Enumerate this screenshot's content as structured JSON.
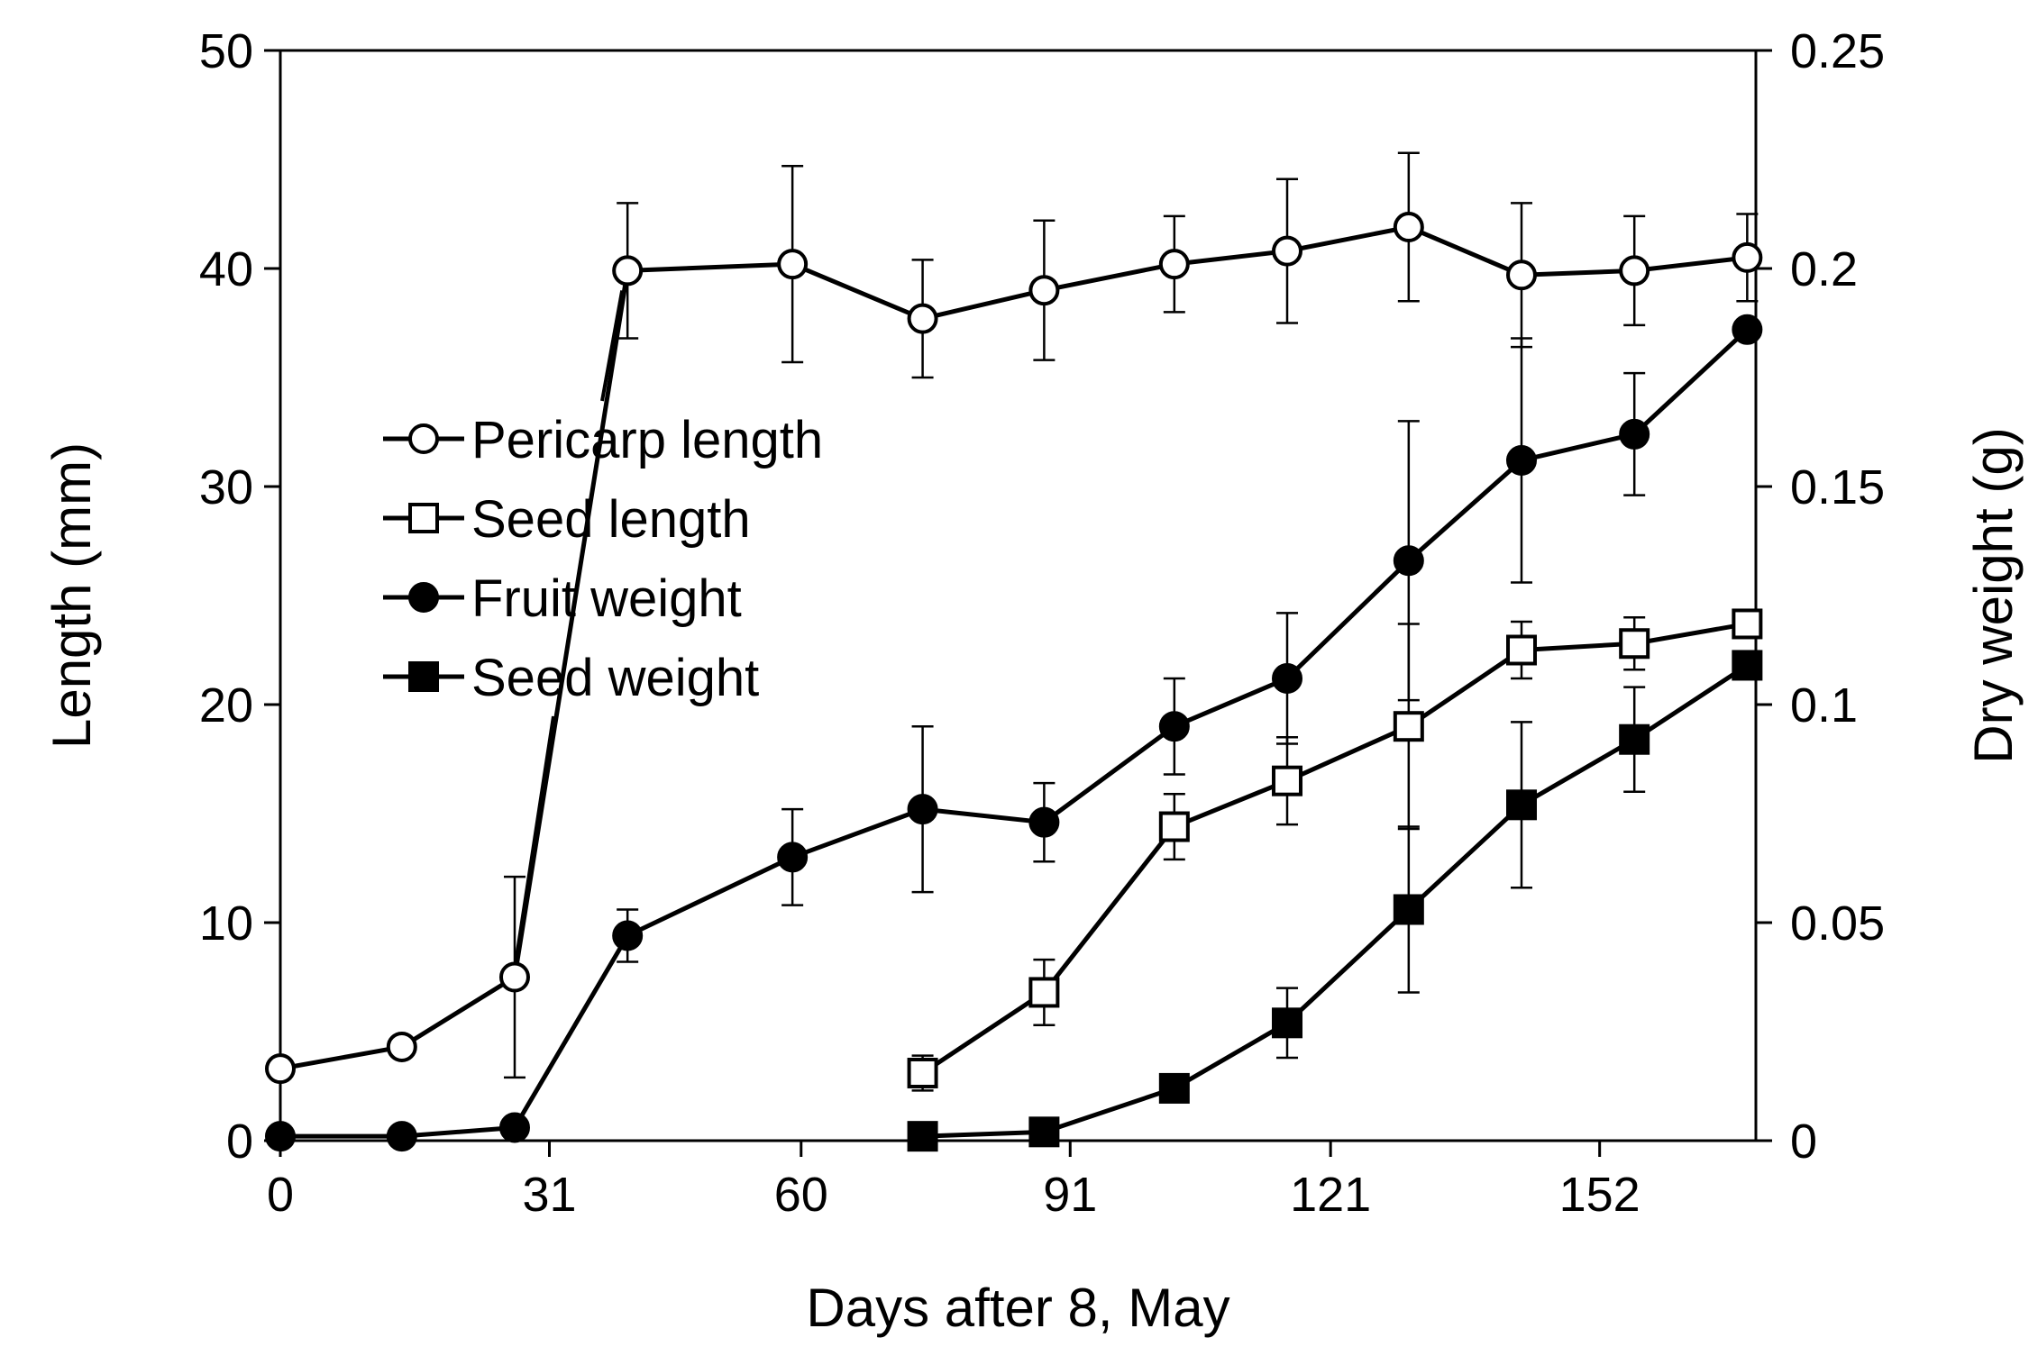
{
  "chart_data": {
    "type": "line",
    "title": "",
    "xlabel": "Days after 8, May",
    "ylabel": "Length (mm)",
    "y2label": "Dry weight (g)",
    "xlim": [
      0,
      170
    ],
    "ylim": [
      0,
      50
    ],
    "y2lim": [
      0,
      0.25
    ],
    "xticks": [
      0,
      31,
      60,
      91,
      121,
      152
    ],
    "yticks": [
      0,
      10,
      20,
      30,
      40,
      50
    ],
    "y2ticks": [
      0,
      0.05,
      0.1,
      0.15,
      0.2,
      0.25
    ],
    "xtick_labels": [
      "0",
      "31",
      "60",
      "91",
      "121",
      "152"
    ],
    "ytick_labels": [
      "0",
      "10",
      "20",
      "30",
      "40",
      "50"
    ],
    "y2tick_labels": [
      "0",
      "0.05",
      "0.1",
      "0.15",
      "0.2",
      "0.25"
    ],
    "legend_position": "upper-left (inside plot)",
    "series": [
      {
        "name": "Pericarp length",
        "axis": "left",
        "marker": "circle-open",
        "x": [
          0,
          14,
          27,
          40,
          59,
          74,
          88,
          103,
          116,
          130,
          143,
          156,
          169
        ],
        "y": [
          3.3,
          4.3,
          7.5,
          39.9,
          40.2,
          37.7,
          39.0,
          40.2,
          40.8,
          41.9,
          39.7,
          39.9,
          40.5
        ],
        "err": [
          0,
          0,
          4.6,
          3.1,
          4.5,
          2.7,
          3.2,
          2.2,
          3.3,
          3.4,
          3.3,
          2.5,
          2.0
        ]
      },
      {
        "name": "Seed length",
        "axis": "left",
        "marker": "square-open",
        "x": [
          74,
          88,
          103,
          116,
          130,
          143,
          156,
          169
        ],
        "y": [
          3.1,
          6.8,
          14.4,
          16.5,
          19.0,
          22.5,
          22.8,
          23.7
        ],
        "err": [
          0.8,
          1.5,
          1.5,
          2.0,
          4.7,
          1.3,
          1.2,
          0
        ]
      },
      {
        "name": "Fruit weight",
        "axis": "right",
        "marker": "circle-filled",
        "x": [
          0,
          14,
          27,
          40,
          59,
          74,
          88,
          103,
          116,
          130,
          143,
          156,
          169
        ],
        "y": [
          0.001,
          0.001,
          0.003,
          0.047,
          0.065,
          0.076,
          0.073,
          0.095,
          0.106,
          0.133,
          0.156,
          0.162,
          0.186
        ],
        "err": [
          0,
          0,
          0,
          0.006,
          0.011,
          0.019,
          0.009,
          0.011,
          0.015,
          0.032,
          0.028,
          0.014,
          0
        ]
      },
      {
        "name": "Seed weight",
        "axis": "right",
        "marker": "square-filled",
        "x": [
          74,
          88,
          103,
          116,
          130,
          143,
          156,
          169
        ],
        "y": [
          0.001,
          0.002,
          0.012,
          0.027,
          0.053,
          0.077,
          0.092,
          0.109
        ],
        "err": [
          0,
          0,
          0,
          0.008,
          0.019,
          0.019,
          0.012,
          0
        ]
      }
    ],
    "annotations": [
      {
        "label": "pointer-pericarp-to-legend",
        "from_series": "Pericarp length",
        "from_x": 40
      },
      {
        "label": "pointer-seed-weight-to-pericarp",
        "to_series": "Pericarp length",
        "to_x": 27
      }
    ],
    "colors": {
      "line": "#000000",
      "background": "#ffffff"
    }
  }
}
